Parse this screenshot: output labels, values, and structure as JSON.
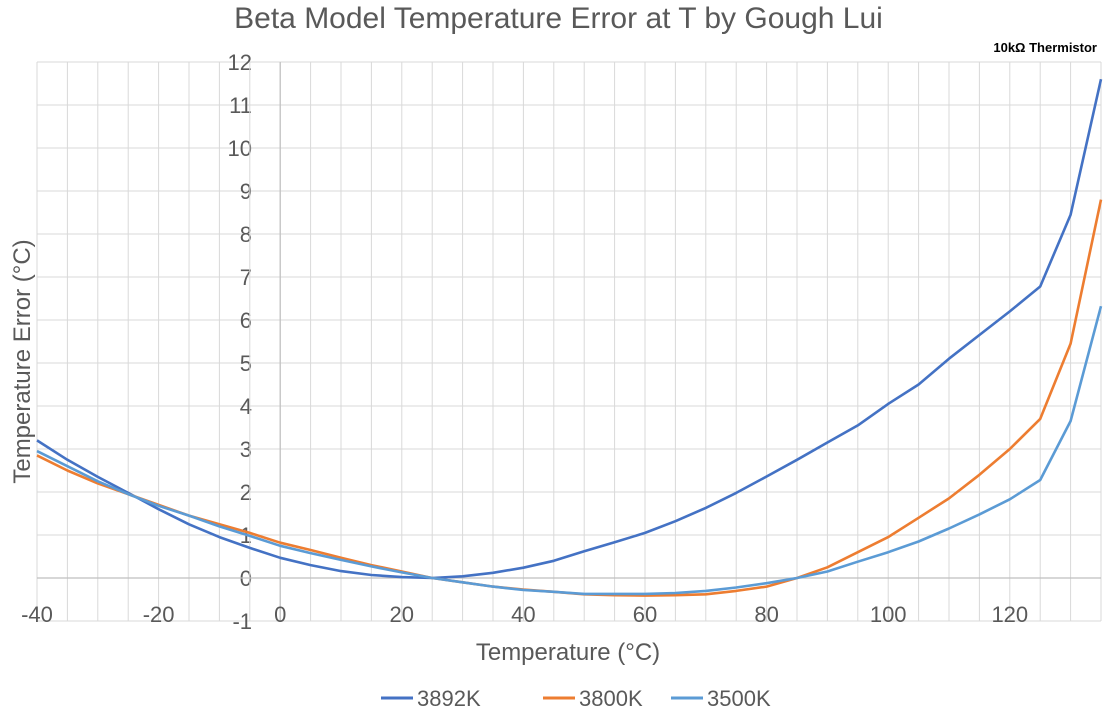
{
  "chart_data": {
    "type": "line",
    "title": "Beta Model Temperature Error at T by Gough Lui",
    "subtitle": "10kΩ Thermistor",
    "xlabel": "Temperature (°C)",
    "ylabel": "Temperature Error (°C)",
    "xlim": [
      -40,
      135
    ],
    "ylim": [
      -1,
      12
    ],
    "xticks": [
      -40,
      -20,
      0,
      20,
      40,
      60,
      80,
      100,
      120
    ],
    "yticks": [
      -1,
      0,
      1,
      2,
      3,
      4,
      5,
      6,
      7,
      8,
      9,
      10,
      11,
      12
    ],
    "grid": true,
    "legend_position": "bottom",
    "x": [
      -40,
      -35,
      -30,
      -25,
      -20,
      -15,
      -10,
      -5,
      0,
      5,
      10,
      15,
      20,
      25,
      30,
      35,
      40,
      45,
      50,
      55,
      60,
      65,
      70,
      75,
      80,
      85,
      90,
      95,
      100,
      105,
      110,
      115,
      120,
      125,
      130,
      135
    ],
    "series": [
      {
        "name": "3892K",
        "color": "#4472C4",
        "values": [
          3.2,
          2.75,
          2.35,
          1.98,
          1.6,
          1.25,
          0.95,
          0.7,
          0.47,
          0.3,
          0.16,
          0.07,
          0.02,
          0.0,
          0.04,
          0.12,
          0.24,
          0.4,
          0.62,
          0.83,
          1.05,
          1.32,
          1.63,
          1.98,
          2.36,
          2.75,
          3.15,
          3.55,
          4.05,
          4.5,
          5.1,
          5.65,
          6.2,
          6.78,
          8.45,
          11.6
        ]
      },
      {
        "name": "3800K",
        "color": "#ED7D31",
        "values": [
          2.85,
          2.5,
          2.2,
          1.95,
          1.7,
          1.45,
          1.25,
          1.05,
          0.82,
          0.65,
          0.47,
          0.3,
          0.15,
          0.0,
          -0.1,
          -0.2,
          -0.27,
          -0.32,
          -0.38,
          -0.4,
          -0.41,
          -0.4,
          -0.38,
          -0.3,
          -0.2,
          0.0,
          0.25,
          0.6,
          0.95,
          1.4,
          1.85,
          2.4,
          3.0,
          3.7,
          5.45,
          8.8
        ]
      },
      {
        "name": "3500K",
        "color": "#5B9BD5",
        "values": [
          2.95,
          2.6,
          2.25,
          1.95,
          1.68,
          1.45,
          1.2,
          0.98,
          0.75,
          0.58,
          0.42,
          0.27,
          0.13,
          0.0,
          -0.1,
          -0.2,
          -0.28,
          -0.32,
          -0.37,
          -0.37,
          -0.37,
          -0.35,
          -0.3,
          -0.22,
          -0.12,
          0.0,
          0.15,
          0.38,
          0.6,
          0.85,
          1.15,
          1.48,
          1.83,
          2.28,
          3.65,
          6.32
        ]
      }
    ]
  }
}
